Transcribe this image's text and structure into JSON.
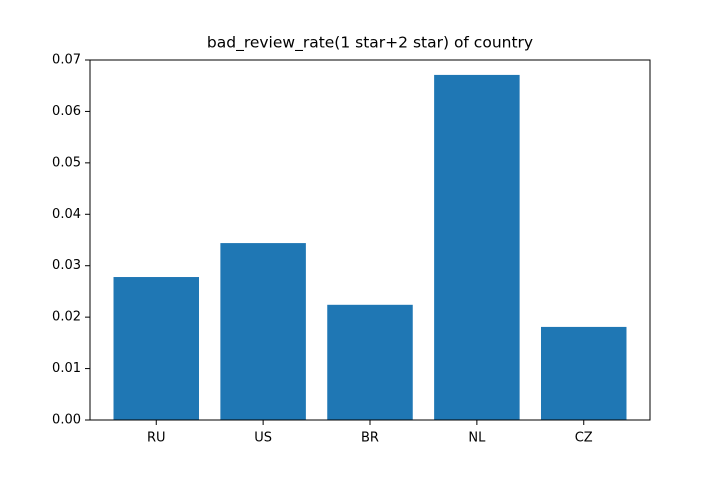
{
  "chart_data": {
    "type": "bar",
    "title": "bad_review_rate(1 star+2 star) of country",
    "categories": [
      "RU",
      "US",
      "BR",
      "NL",
      "CZ"
    ],
    "values": [
      0.0278,
      0.0344,
      0.0224,
      0.0671,
      0.0181
    ],
    "color": "#1f77b4",
    "ylim": [
      0,
      0.07
    ],
    "yticks": [
      {
        "value": 0,
        "label": "0.00"
      },
      {
        "value": 0.01,
        "label": "0.01"
      },
      {
        "value": 0.02,
        "label": "0.02"
      },
      {
        "value": 0.03,
        "label": "0.03"
      },
      {
        "value": 0.04,
        "label": "0.04"
      },
      {
        "value": 0.05,
        "label": "0.05"
      },
      {
        "value": 0.06,
        "label": "0.06"
      },
      {
        "value": 0.07,
        "label": "0.07"
      }
    ],
    "grid": false
  }
}
